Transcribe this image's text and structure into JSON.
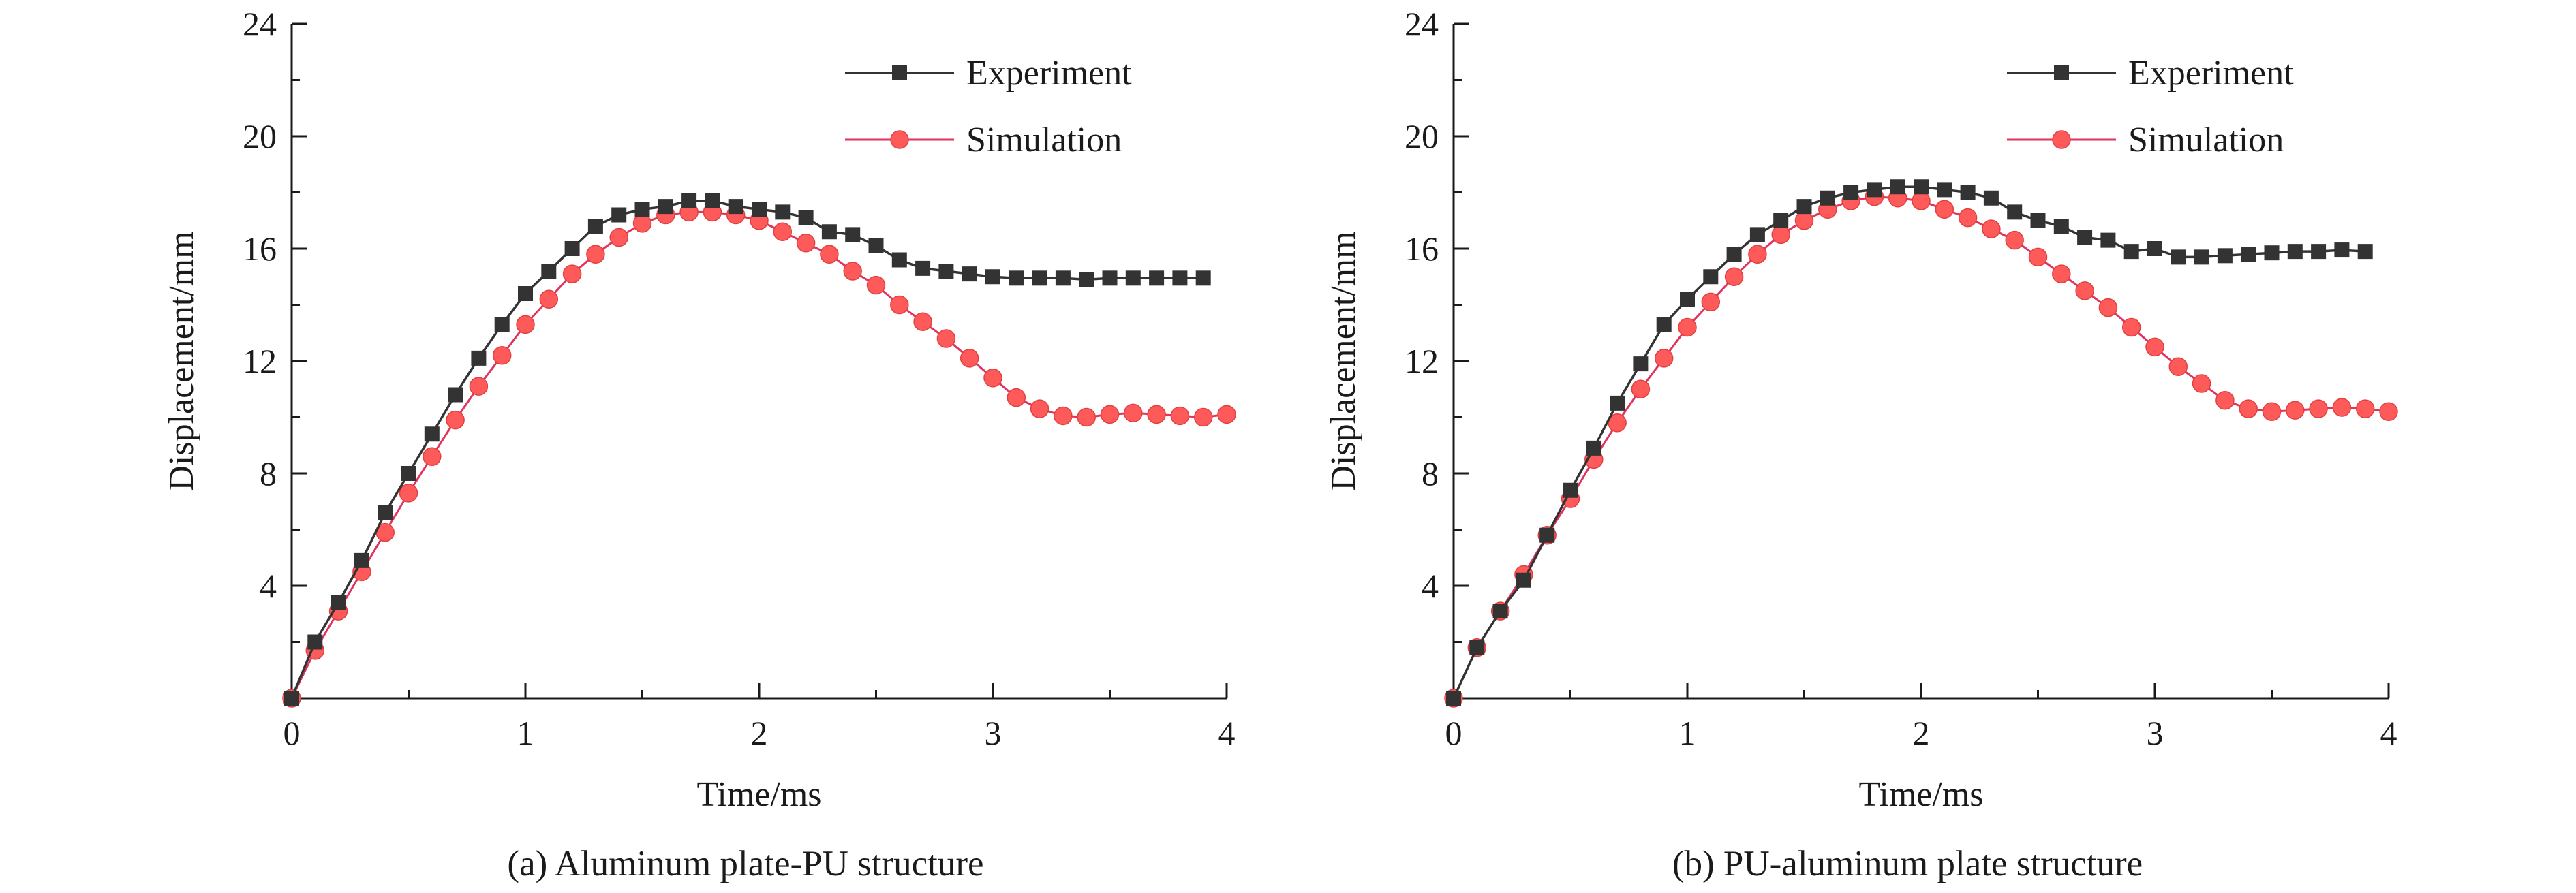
{
  "figure": {
    "panels": [
      {
        "caption": "(a) Aluminum plate-PU structure"
      },
      {
        "caption": "(b) PU-aluminum plate structure"
      }
    ]
  },
  "colors": {
    "experiment": "#333333",
    "simulation_line": "#e0335e",
    "simulation_fill": "#ff5a5a",
    "axis": "#1a1a1a"
  },
  "chart_data": [
    {
      "type": "line",
      "caption": "(a) Aluminum plate-PU structure",
      "xlabel": "Time/ms",
      "ylabel": "Displacement/mm",
      "xlim": [
        0,
        4
      ],
      "ylim": [
        0,
        24
      ],
      "xticks": [
        "0",
        "1",
        "2",
        "3",
        "4"
      ],
      "yticks": [
        "4",
        "8",
        "12",
        "16",
        "20",
        "24"
      ],
      "legend_position": "top-right",
      "series": [
        {
          "name": "Experiment",
          "marker": "square",
          "x": [
            0,
            0.1,
            0.2,
            0.3,
            0.4,
            0.5,
            0.6,
            0.7,
            0.8,
            0.9,
            1.0,
            1.1,
            1.2,
            1.3,
            1.4,
            1.5,
            1.6,
            1.7,
            1.8,
            1.9,
            2.0,
            2.1,
            2.2,
            2.3,
            2.4,
            2.5,
            2.6,
            2.7,
            2.8,
            2.9,
            3.0,
            3.1,
            3.2,
            3.3,
            3.4,
            3.5,
            3.6,
            3.7,
            3.8,
            3.9
          ],
          "y": [
            0,
            2.0,
            3.4,
            4.9,
            6.6,
            8.0,
            9.4,
            10.8,
            12.1,
            13.3,
            14.4,
            15.2,
            16.0,
            16.8,
            17.2,
            17.4,
            17.5,
            17.7,
            17.7,
            17.5,
            17.4,
            17.3,
            17.1,
            16.6,
            16.5,
            16.1,
            15.6,
            15.3,
            15.2,
            15.1,
            15.0,
            14.95,
            14.95,
            14.95,
            14.9,
            14.95,
            14.95,
            14.95,
            14.95,
            14.95
          ]
        },
        {
          "name": "Simulation",
          "marker": "circle",
          "x": [
            0,
            0.1,
            0.2,
            0.3,
            0.4,
            0.5,
            0.6,
            0.7,
            0.8,
            0.9,
            1.0,
            1.1,
            1.2,
            1.3,
            1.4,
            1.5,
            1.6,
            1.7,
            1.8,
            1.9,
            2.0,
            2.1,
            2.2,
            2.3,
            2.4,
            2.5,
            2.6,
            2.7,
            2.8,
            2.9,
            3.0,
            3.1,
            3.2,
            3.3,
            3.4,
            3.5,
            3.6,
            3.7,
            3.8,
            3.9,
            4.0
          ],
          "y": [
            0,
            1.7,
            3.1,
            4.5,
            5.9,
            7.3,
            8.6,
            9.9,
            11.1,
            12.2,
            13.3,
            14.2,
            15.1,
            15.8,
            16.4,
            16.9,
            17.2,
            17.3,
            17.3,
            17.2,
            17.0,
            16.6,
            16.2,
            15.8,
            15.2,
            14.7,
            14.0,
            13.4,
            12.8,
            12.1,
            11.4,
            10.7,
            10.3,
            10.05,
            10.0,
            10.1,
            10.15,
            10.1,
            10.05,
            10.0,
            10.1
          ]
        }
      ]
    },
    {
      "type": "line",
      "caption": "(b) PU-aluminum plate structure",
      "xlabel": "Time/ms",
      "ylabel": "Displacement/mm",
      "xlim": [
        0,
        4
      ],
      "ylim": [
        0,
        24
      ],
      "xticks": [
        "0",
        "1",
        "2",
        "3",
        "4"
      ],
      "yticks": [
        "4",
        "8",
        "12",
        "16",
        "20",
        "24"
      ],
      "legend_position": "top-right",
      "series": [
        {
          "name": "Experiment",
          "marker": "square",
          "x": [
            0,
            0.1,
            0.2,
            0.3,
            0.4,
            0.5,
            0.6,
            0.7,
            0.8,
            0.9,
            1.0,
            1.1,
            1.2,
            1.3,
            1.4,
            1.5,
            1.6,
            1.7,
            1.8,
            1.9,
            2.0,
            2.1,
            2.2,
            2.3,
            2.4,
            2.5,
            2.6,
            2.7,
            2.8,
            2.9,
            3.0,
            3.1,
            3.2,
            3.3,
            3.4,
            3.5,
            3.6,
            3.7,
            3.8,
            3.9
          ],
          "y": [
            0,
            1.8,
            3.1,
            4.2,
            5.8,
            7.4,
            8.9,
            10.5,
            11.9,
            13.3,
            14.2,
            15.0,
            15.8,
            16.5,
            17.0,
            17.5,
            17.8,
            18.0,
            18.1,
            18.2,
            18.2,
            18.1,
            18.0,
            17.8,
            17.3,
            17.0,
            16.8,
            16.4,
            16.3,
            15.9,
            16.0,
            15.7,
            15.7,
            15.75,
            15.8,
            15.85,
            15.9,
            15.9,
            15.95,
            15.9
          ]
        },
        {
          "name": "Simulation",
          "marker": "circle",
          "x": [
            0,
            0.1,
            0.2,
            0.3,
            0.4,
            0.5,
            0.6,
            0.7,
            0.8,
            0.9,
            1.0,
            1.1,
            1.2,
            1.3,
            1.4,
            1.5,
            1.6,
            1.7,
            1.8,
            1.9,
            2.0,
            2.1,
            2.2,
            2.3,
            2.4,
            2.5,
            2.6,
            2.7,
            2.8,
            2.9,
            3.0,
            3.1,
            3.2,
            3.3,
            3.4,
            3.5,
            3.6,
            3.7,
            3.8,
            3.9,
            4.0
          ],
          "y": [
            0,
            1.8,
            3.1,
            4.4,
            5.8,
            7.1,
            8.5,
            9.8,
            11.0,
            12.1,
            13.2,
            14.1,
            15.0,
            15.8,
            16.5,
            17.0,
            17.4,
            17.7,
            17.85,
            17.8,
            17.7,
            17.4,
            17.1,
            16.7,
            16.3,
            15.7,
            15.1,
            14.5,
            13.9,
            13.2,
            12.5,
            11.8,
            11.2,
            10.6,
            10.3,
            10.2,
            10.25,
            10.3,
            10.35,
            10.3,
            10.2
          ]
        }
      ]
    }
  ]
}
